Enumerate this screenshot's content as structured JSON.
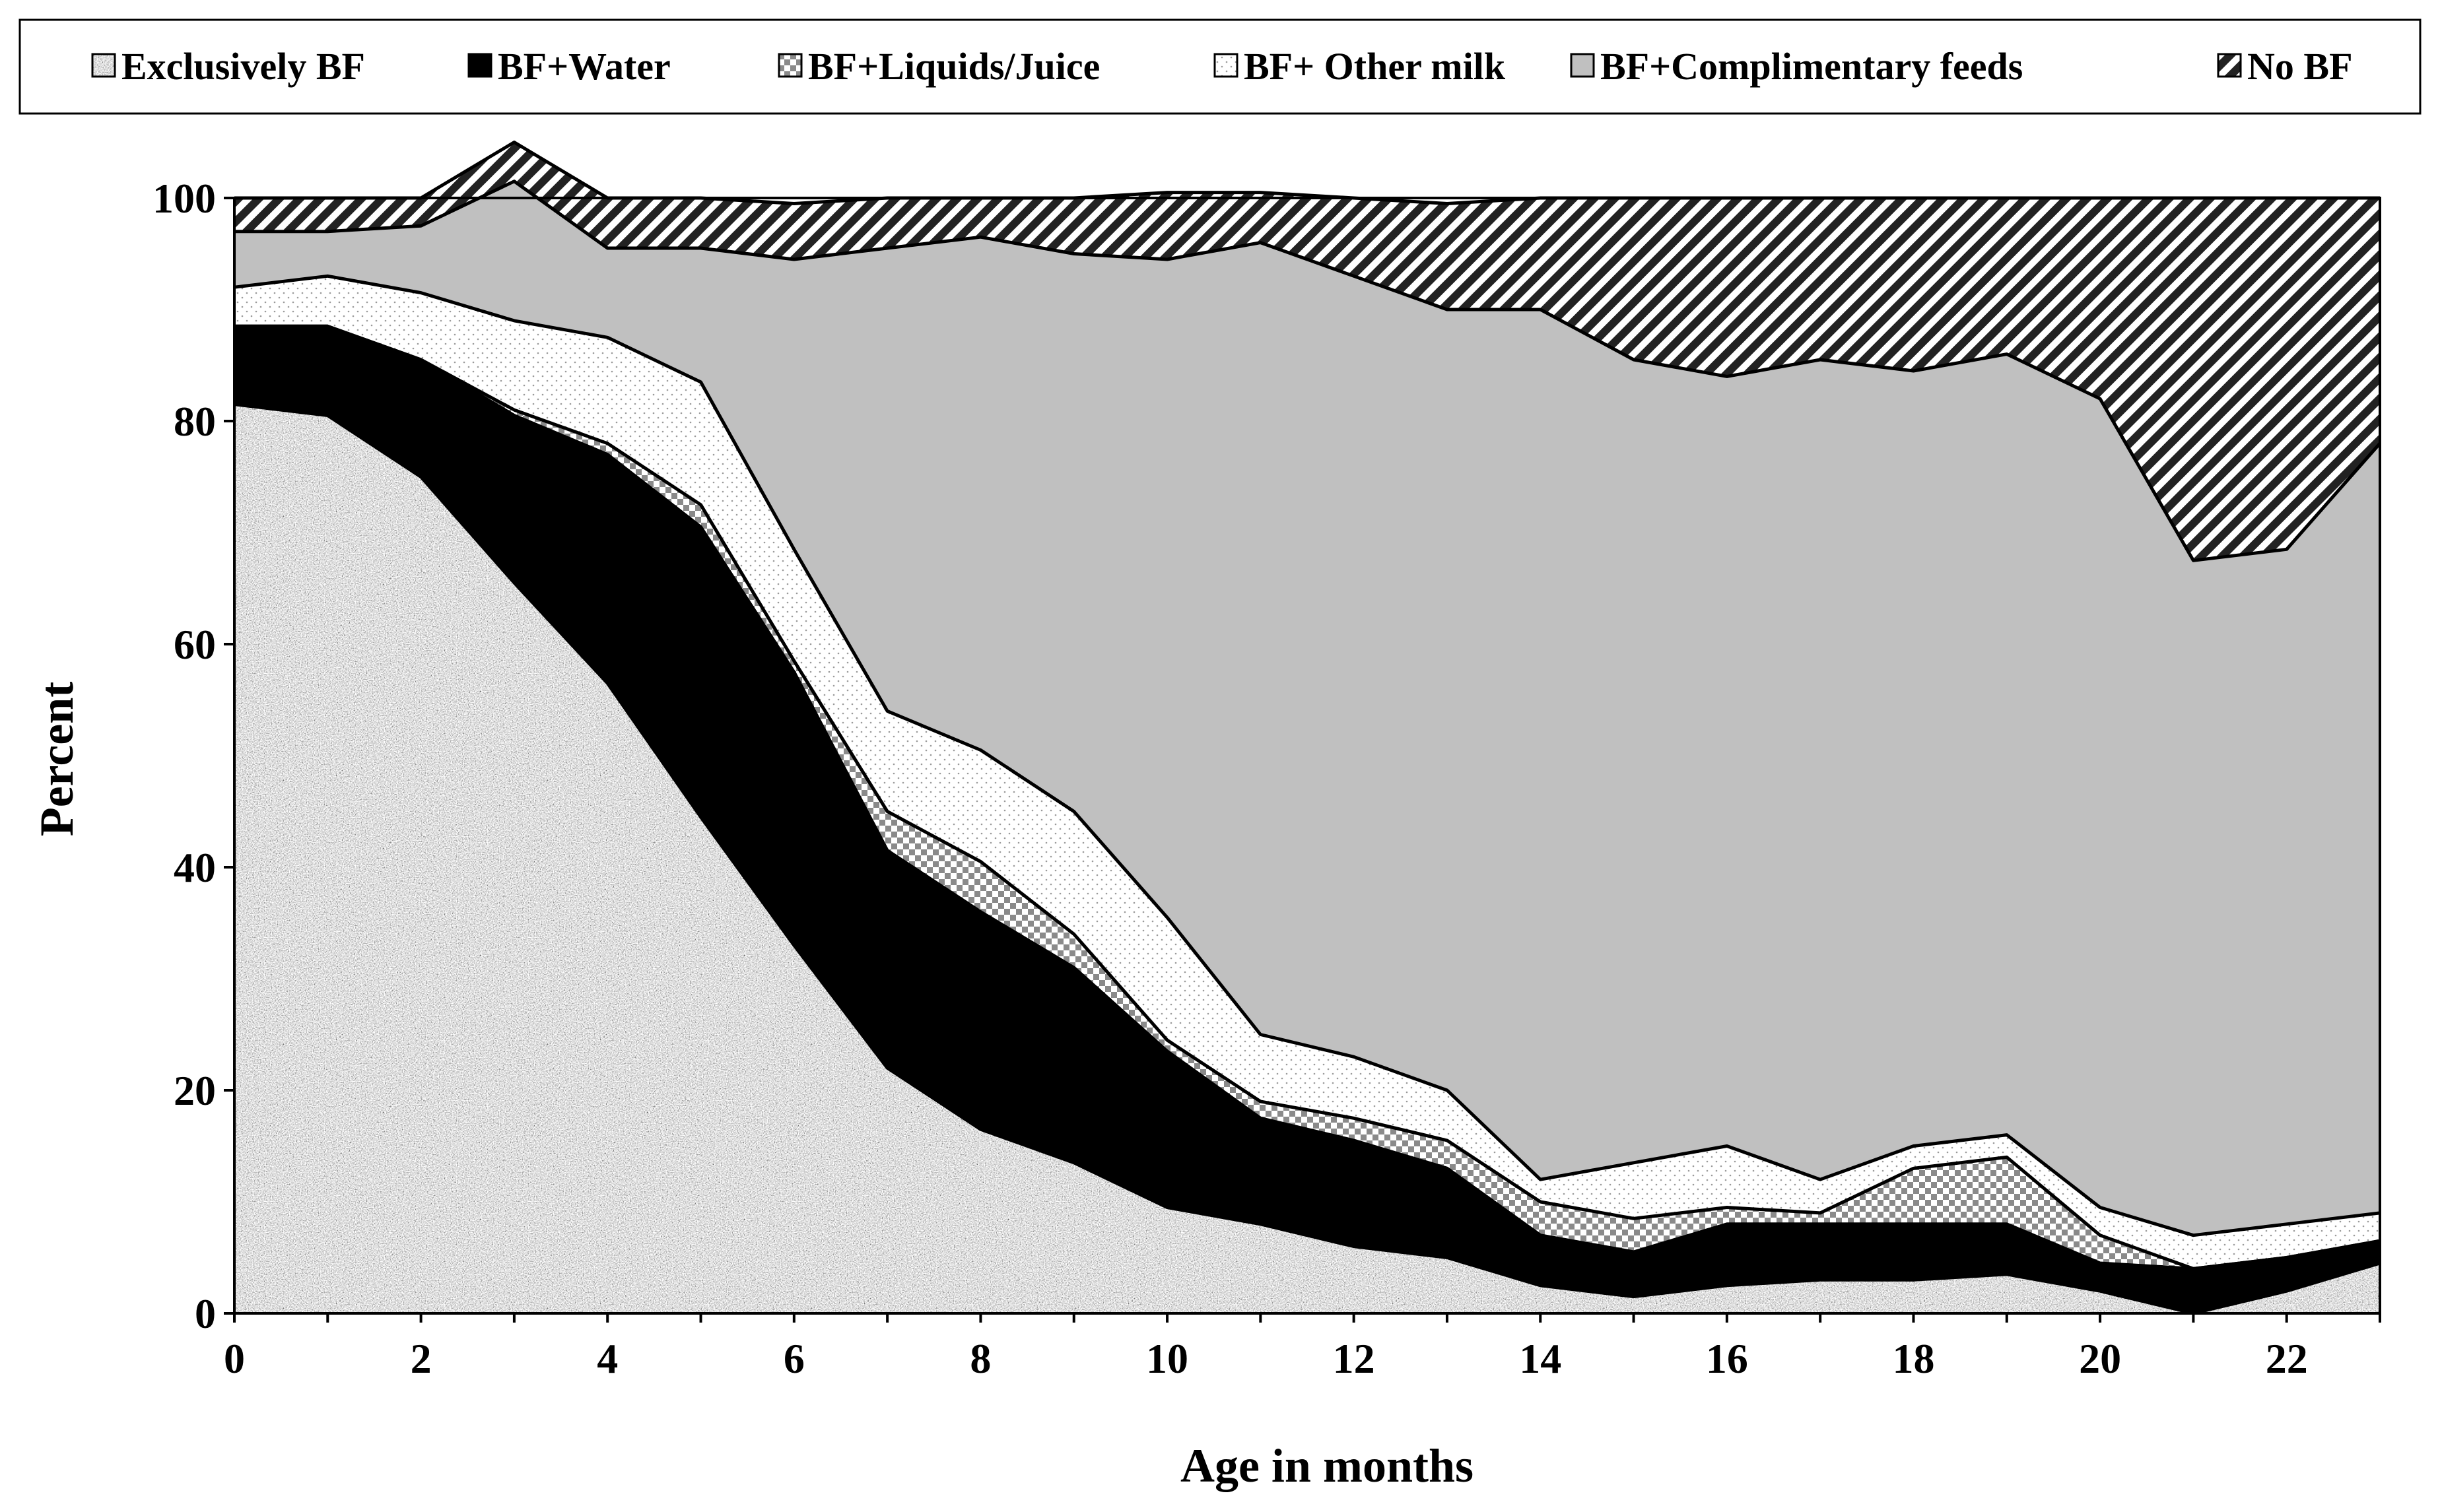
{
  "chart_data": {
    "type": "area",
    "stacked": true,
    "xlabel": "Age in months",
    "ylabel": "Percent",
    "xlim": [
      0,
      23
    ],
    "ylim": [
      0,
      100
    ],
    "xticks": [
      0,
      2,
      4,
      6,
      8,
      10,
      12,
      14,
      16,
      18,
      20,
      22
    ],
    "yticks": [
      0,
      20,
      40,
      60,
      80,
      100
    ],
    "grid": false,
    "legend_position": "top",
    "x": [
      0,
      1,
      2,
      3,
      4,
      5,
      6,
      7,
      8,
      9,
      10,
      11,
      12,
      13,
      14,
      15,
      16,
      17,
      18,
      19,
      20,
      21,
      22,
      23
    ],
    "series": [
      {
        "name": "Exclusively BF",
        "pattern": "noise-gray",
        "values": [
          81.5,
          80.5,
          75,
          65.5,
          56.5,
          44.5,
          33,
          22,
          16.5,
          13.5,
          9.5,
          8,
          6,
          5,
          2.5,
          1.5,
          2.5,
          3,
          3,
          3.5,
          2,
          0,
          2,
          4.5
        ]
      },
      {
        "name": "BF+Water",
        "pattern": "solid-black",
        "values": [
          7,
          8,
          10.5,
          15,
          20.5,
          26,
          24.5,
          19.5,
          19.5,
          17.5,
          14,
          9.5,
          9.5,
          8,
          4.5,
          4,
          5.5,
          5,
          5,
          4.5,
          2.5,
          4,
          3,
          2
        ]
      },
      {
        "name": "BF+Liquids/Juice",
        "pattern": "checker-gray",
        "values": [
          0,
          0,
          0,
          0.5,
          1,
          2,
          1,
          3.5,
          4.5,
          3,
          1,
          1.5,
          2,
          2.5,
          3,
          3,
          1.5,
          1,
          5,
          6,
          2.5,
          0,
          0,
          0
        ]
      },
      {
        "name": "BF+ Other milk",
        "pattern": "dots-white",
        "values": [
          3.5,
          4.5,
          6,
          8,
          9.5,
          11,
          10,
          9,
          10,
          11,
          11,
          6,
          5.5,
          4.5,
          2,
          5,
          5.5,
          3,
          2,
          2,
          2.5,
          3,
          3,
          2.5
        ]
      },
      {
        "name": "BF+Complimentary feeds",
        "pattern": "solid-lightgray",
        "values": [
          5,
          4,
          6,
          12.5,
          8,
          12,
          26,
          41.5,
          46,
          50,
          59,
          71,
          70,
          70,
          78,
          72,
          69,
          73.5,
          69.5,
          70,
          72.5,
          60.5,
          60.5,
          69
        ]
      },
      {
        "name": "No BF",
        "pattern": "diagonal-stripes",
        "values": [
          3,
          3,
          2.5,
          3.5,
          4.5,
          4.5,
          5,
          4.5,
          3.5,
          5,
          6,
          4.5,
          7,
          9.5,
          10,
          14.5,
          16,
          14.5,
          15.5,
          14,
          18,
          32.5,
          31.5,
          22
        ]
      }
    ]
  },
  "legend": {
    "items": [
      {
        "label": "Exclusively BF",
        "pattern": "noise-gray"
      },
      {
        "label": "BF+Water",
        "pattern": "solid-black"
      },
      {
        "label": "BF+Liquids/Juice",
        "pattern": "checker-gray"
      },
      {
        "label": "BF+ Other milk",
        "pattern": "dots-white"
      },
      {
        "label": "BF+Complimentary feeds",
        "pattern": "solid-lightgray"
      },
      {
        "label": "No BF",
        "pattern": "diagonal-stripes"
      }
    ]
  }
}
